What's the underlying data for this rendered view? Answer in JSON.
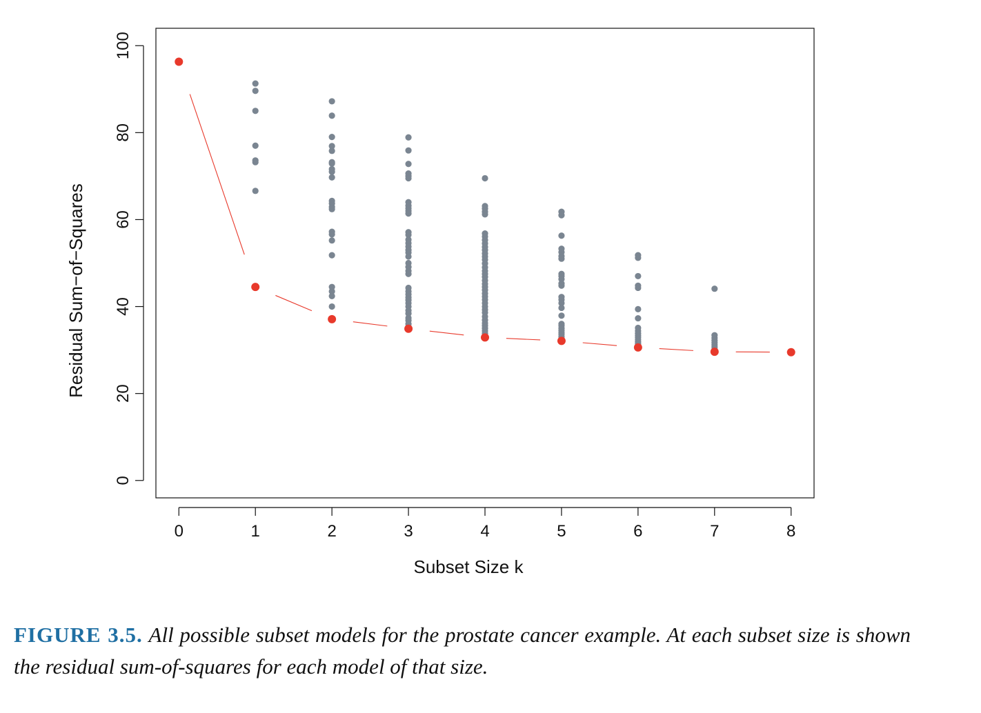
{
  "chart_data": {
    "type": "scatter",
    "title": "",
    "xlabel": "Subset Size k",
    "ylabel": "Residual Sum−of−Squares",
    "xlim": [
      -0.3,
      8.3
    ],
    "ylim": [
      -4,
      104
    ],
    "x_ticks": [
      0,
      1,
      2,
      3,
      4,
      5,
      6,
      7,
      8
    ],
    "x_tick_labels": [
      "0",
      "1",
      "2",
      "3",
      "4",
      "5",
      "6",
      "7",
      "8"
    ],
    "y_ticks": [
      0,
      20,
      40,
      60,
      80,
      100
    ],
    "y_tick_labels": [
      "0",
      "20",
      "40",
      "60",
      "80",
      "100"
    ],
    "grid": false,
    "legend": "none",
    "colors": {
      "models": "#7a8591",
      "best": "#e8392b",
      "frontier": "#e8392b"
    },
    "series": [
      {
        "role": "all-subset-models",
        "points": [
          {
            "k": 1,
            "rss": [
              91.3,
              89.6,
              85.0,
              77.0,
              73.6,
              73.2,
              66.6,
              44.5
            ]
          },
          {
            "k": 2,
            "rss": [
              87.2,
              83.9,
              79.0,
              76.9,
              75.8,
              73.2,
              72.9,
              71.6,
              71.0,
              69.7,
              64.3,
              63.7,
              62.9,
              62.4,
              57.2,
              56.6,
              55.2,
              51.8,
              44.5,
              43.5,
              42.4,
              40.0,
              37.1
            ]
          },
          {
            "k": 3,
            "rss": [
              78.9,
              75.9,
              72.8,
              70.6,
              70.0,
              69.5,
              64.0,
              63.2,
              62.6,
              62.0,
              61.4,
              57.1,
              56.5,
              55.4,
              54.6,
              53.8,
              53.0,
              52.4,
              51.5,
              50.0,
              49.1,
              48.2,
              47.5,
              44.3,
              43.5,
              42.8,
              42.1,
              41.5,
              40.8,
              40.0,
              39.1,
              38.4,
              37.4,
              36.8,
              36.0,
              35.4,
              34.9
            ]
          },
          {
            "k": 4,
            "rss": [
              69.5,
              63.1,
              62.5,
              61.8,
              61.2,
              56.8,
              56.1,
              55.3,
              54.5,
              53.7,
              53.0,
              52.2,
              51.5,
              50.8,
              49.9,
              49.0,
              48.2,
              47.5,
              46.8,
              46.0,
              45.2,
              44.5,
              43.8,
              43.0,
              42.3,
              41.6,
              40.8,
              40.0,
              39.3,
              38.6,
              37.7,
              36.9,
              36.2,
              35.6,
              35.0,
              34.4,
              33.8,
              33.2,
              32.9
            ]
          },
          {
            "k": 5,
            "rss": [
              61.8,
              61.0,
              56.3,
              53.3,
              52.5,
              51.6,
              51.0,
              47.5,
              47.0,
              46.3,
              45.3,
              44.8,
              42.2,
              41.6,
              40.8,
              39.7,
              37.9,
              36.0,
              35.6,
              35.0,
              34.5,
              34.0,
              33.6,
              33.1,
              32.6,
              32.1
            ]
          },
          {
            "k": 6,
            "rss": [
              51.8,
              51.2,
              47.0,
              44.8,
              44.3,
              39.4,
              37.3,
              35.1,
              34.4,
              33.8,
              33.3,
              32.9,
              32.4,
              31.9,
              31.5,
              31.1,
              30.6
            ]
          },
          {
            "k": 7,
            "rss": [
              44.1,
              33.4,
              32.8,
              32.2,
              31.7,
              31.2,
              30.7,
              30.2,
              29.6
            ]
          }
        ]
      },
      {
        "role": "best-subset",
        "x": [
          0,
          1,
          2,
          3,
          4,
          5,
          6,
          7,
          8
        ],
        "y": [
          96.3,
          44.5,
          37.1,
          34.9,
          32.9,
          32.1,
          30.6,
          29.6,
          29.5
        ]
      }
    ]
  },
  "caption": {
    "label": "FIGURE 3.5.",
    "text": "All possible subset models for the prostate cancer example. At each subset size is shown the residual sum-of-squares for each model of that size."
  }
}
